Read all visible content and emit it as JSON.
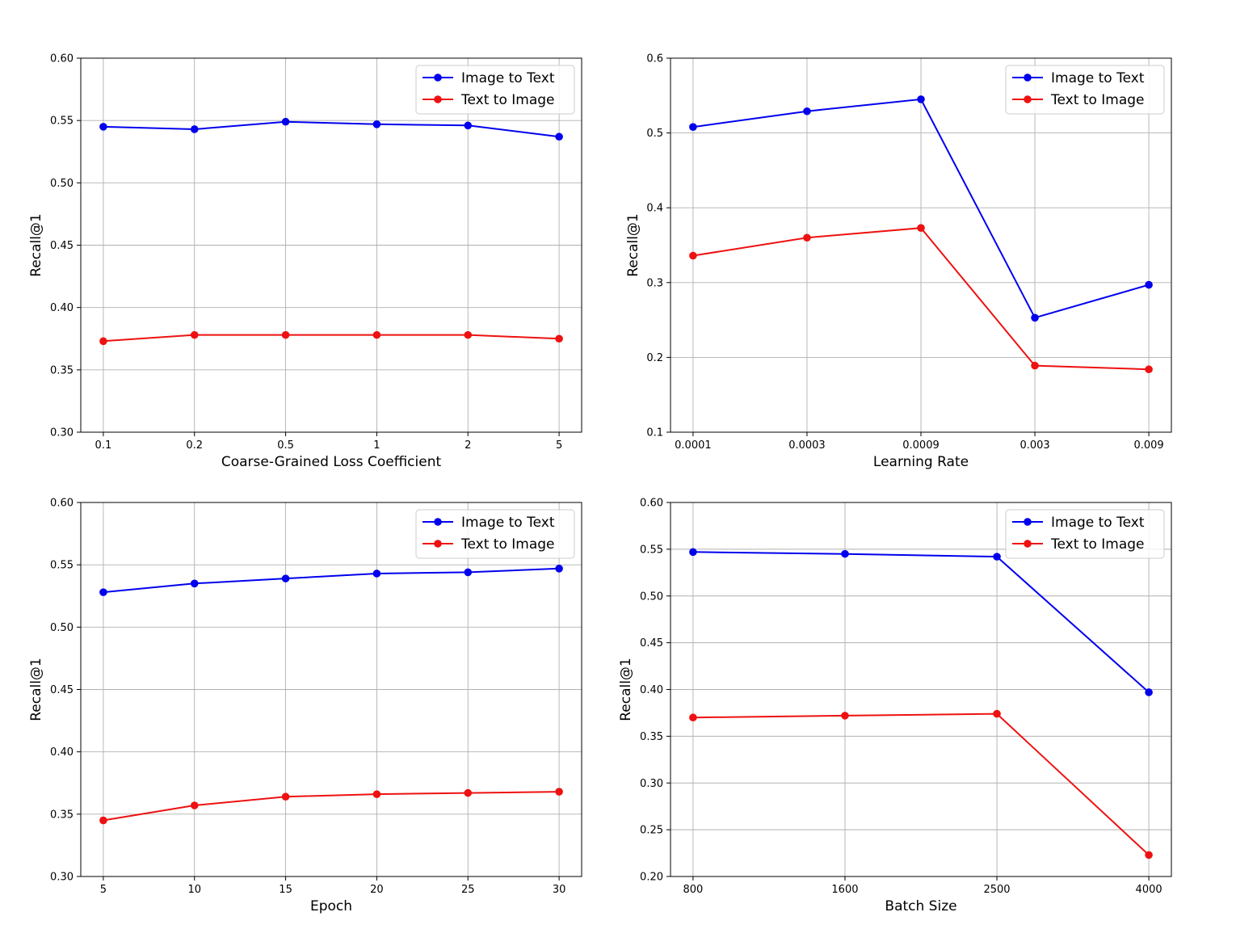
{
  "colors": {
    "image_to_text": "#0000ee",
    "text_to_image": "#ee1111",
    "grid": "#b0b0b0"
  },
  "chart_data": [
    {
      "type": "line",
      "xlabel": "Coarse-Grained Loss Coefficient",
      "ylabel": "Recall@1",
      "categories": [
        "0.1",
        "0.2",
        "0.5",
        "1",
        "2",
        "5"
      ],
      "ylim": [
        0.3,
        0.6
      ],
      "yticks": [
        "0.30",
        "0.35",
        "0.40",
        "0.45",
        "0.50",
        "0.55",
        "0.60"
      ],
      "grid": true,
      "legend_position": "top-right",
      "series": [
        {
          "name": "Image to Text",
          "color": "#0000ee",
          "values": [
            0.545,
            0.543,
            0.549,
            0.547,
            0.546,
            0.537
          ]
        },
        {
          "name": "Text to Image",
          "color": "#ee1111",
          "values": [
            0.373,
            0.378,
            0.378,
            0.378,
            0.378,
            0.375
          ]
        }
      ]
    },
    {
      "type": "line",
      "xlabel": "Learning Rate",
      "ylabel": "Recall@1",
      "categories": [
        "0.0001",
        "0.0003",
        "0.0009",
        "0.003",
        "0.009"
      ],
      "ylim": [
        0.1,
        0.6
      ],
      "yticks": [
        "0.1",
        "0.2",
        "0.3",
        "0.4",
        "0.5",
        "0.6"
      ],
      "grid": true,
      "legend_position": "top-right",
      "series": [
        {
          "name": "Image to Text",
          "color": "#0000ee",
          "values": [
            0.508,
            0.529,
            0.545,
            0.253,
            0.297
          ]
        },
        {
          "name": "Text to Image",
          "color": "#ee1111",
          "values": [
            0.336,
            0.36,
            0.373,
            0.189,
            0.184
          ]
        }
      ]
    },
    {
      "type": "line",
      "xlabel": "Epoch",
      "ylabel": "Recall@1",
      "categories": [
        "5",
        "10",
        "15",
        "20",
        "25",
        "30"
      ],
      "ylim": [
        0.3,
        0.6
      ],
      "yticks": [
        "0.30",
        "0.35",
        "0.40",
        "0.45",
        "0.50",
        "0.55",
        "0.60"
      ],
      "grid": true,
      "legend_position": "top-right",
      "series": [
        {
          "name": "Image to Text",
          "color": "#0000ee",
          "values": [
            0.528,
            0.535,
            0.539,
            0.543,
            0.544,
            0.547
          ]
        },
        {
          "name": "Text to Image",
          "color": "#ee1111",
          "values": [
            0.345,
            0.357,
            0.364,
            0.366,
            0.367,
            0.368
          ]
        }
      ]
    },
    {
      "type": "line",
      "xlabel": "Batch Size",
      "ylabel": "Recall@1",
      "categories": [
        "800",
        "1600",
        "2500",
        "4000"
      ],
      "ylim": [
        0.2,
        0.6
      ],
      "yticks": [
        "0.20",
        "0.25",
        "0.30",
        "0.35",
        "0.40",
        "0.45",
        "0.50",
        "0.55",
        "0.60"
      ],
      "grid": true,
      "legend_position": "top-right",
      "series": [
        {
          "name": "Image to Text",
          "color": "#0000ee",
          "values": [
            0.547,
            0.545,
            0.542,
            0.397
          ]
        },
        {
          "name": "Text to Image",
          "color": "#ee1111",
          "values": [
            0.37,
            0.372,
            0.374,
            0.223
          ]
        }
      ]
    }
  ]
}
